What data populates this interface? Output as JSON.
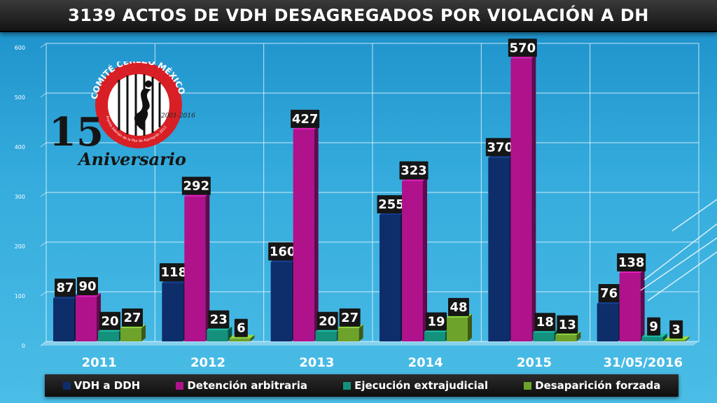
{
  "title": "3139 ACTOS DE VDH DESAGREGADOS POR VIOLACIÓN A DH",
  "logo": {
    "org_text": "COMITÉ CEREZO MÉXICO",
    "award_text": "Premio Alemán de la Paz de Aquisgrán 2012",
    "years_text": "2001-2016",
    "number": "15",
    "anniversary_text": "Aniversario"
  },
  "chart_data": {
    "type": "bar",
    "categories": [
      "2011",
      "2012",
      "2013",
      "2014",
      "2015",
      "31/05/2016"
    ],
    "series": [
      {
        "name": "VDH a DDH",
        "color": "#0e2d6b",
        "values": [
          87,
          118,
          160,
          255,
          370,
          76
        ]
      },
      {
        "name": "Detención arbitraria",
        "color": "#b0128c",
        "values": [
          90,
          292,
          427,
          323,
          570,
          138
        ]
      },
      {
        "name": "Ejecución extrajudicial",
        "color": "#14917c",
        "values": [
          20,
          23,
          20,
          19,
          18,
          9
        ]
      },
      {
        "name": "Desaparición forzada",
        "color": "#6da32a",
        "values": [
          27,
          6,
          27,
          48,
          13,
          3
        ]
      }
    ],
    "ylim": [
      0,
      600
    ],
    "yticks": [
      "0",
      "100",
      "200",
      "300",
      "400",
      "500",
      "600"
    ],
    "grid": true,
    "legend": "bottom"
  }
}
